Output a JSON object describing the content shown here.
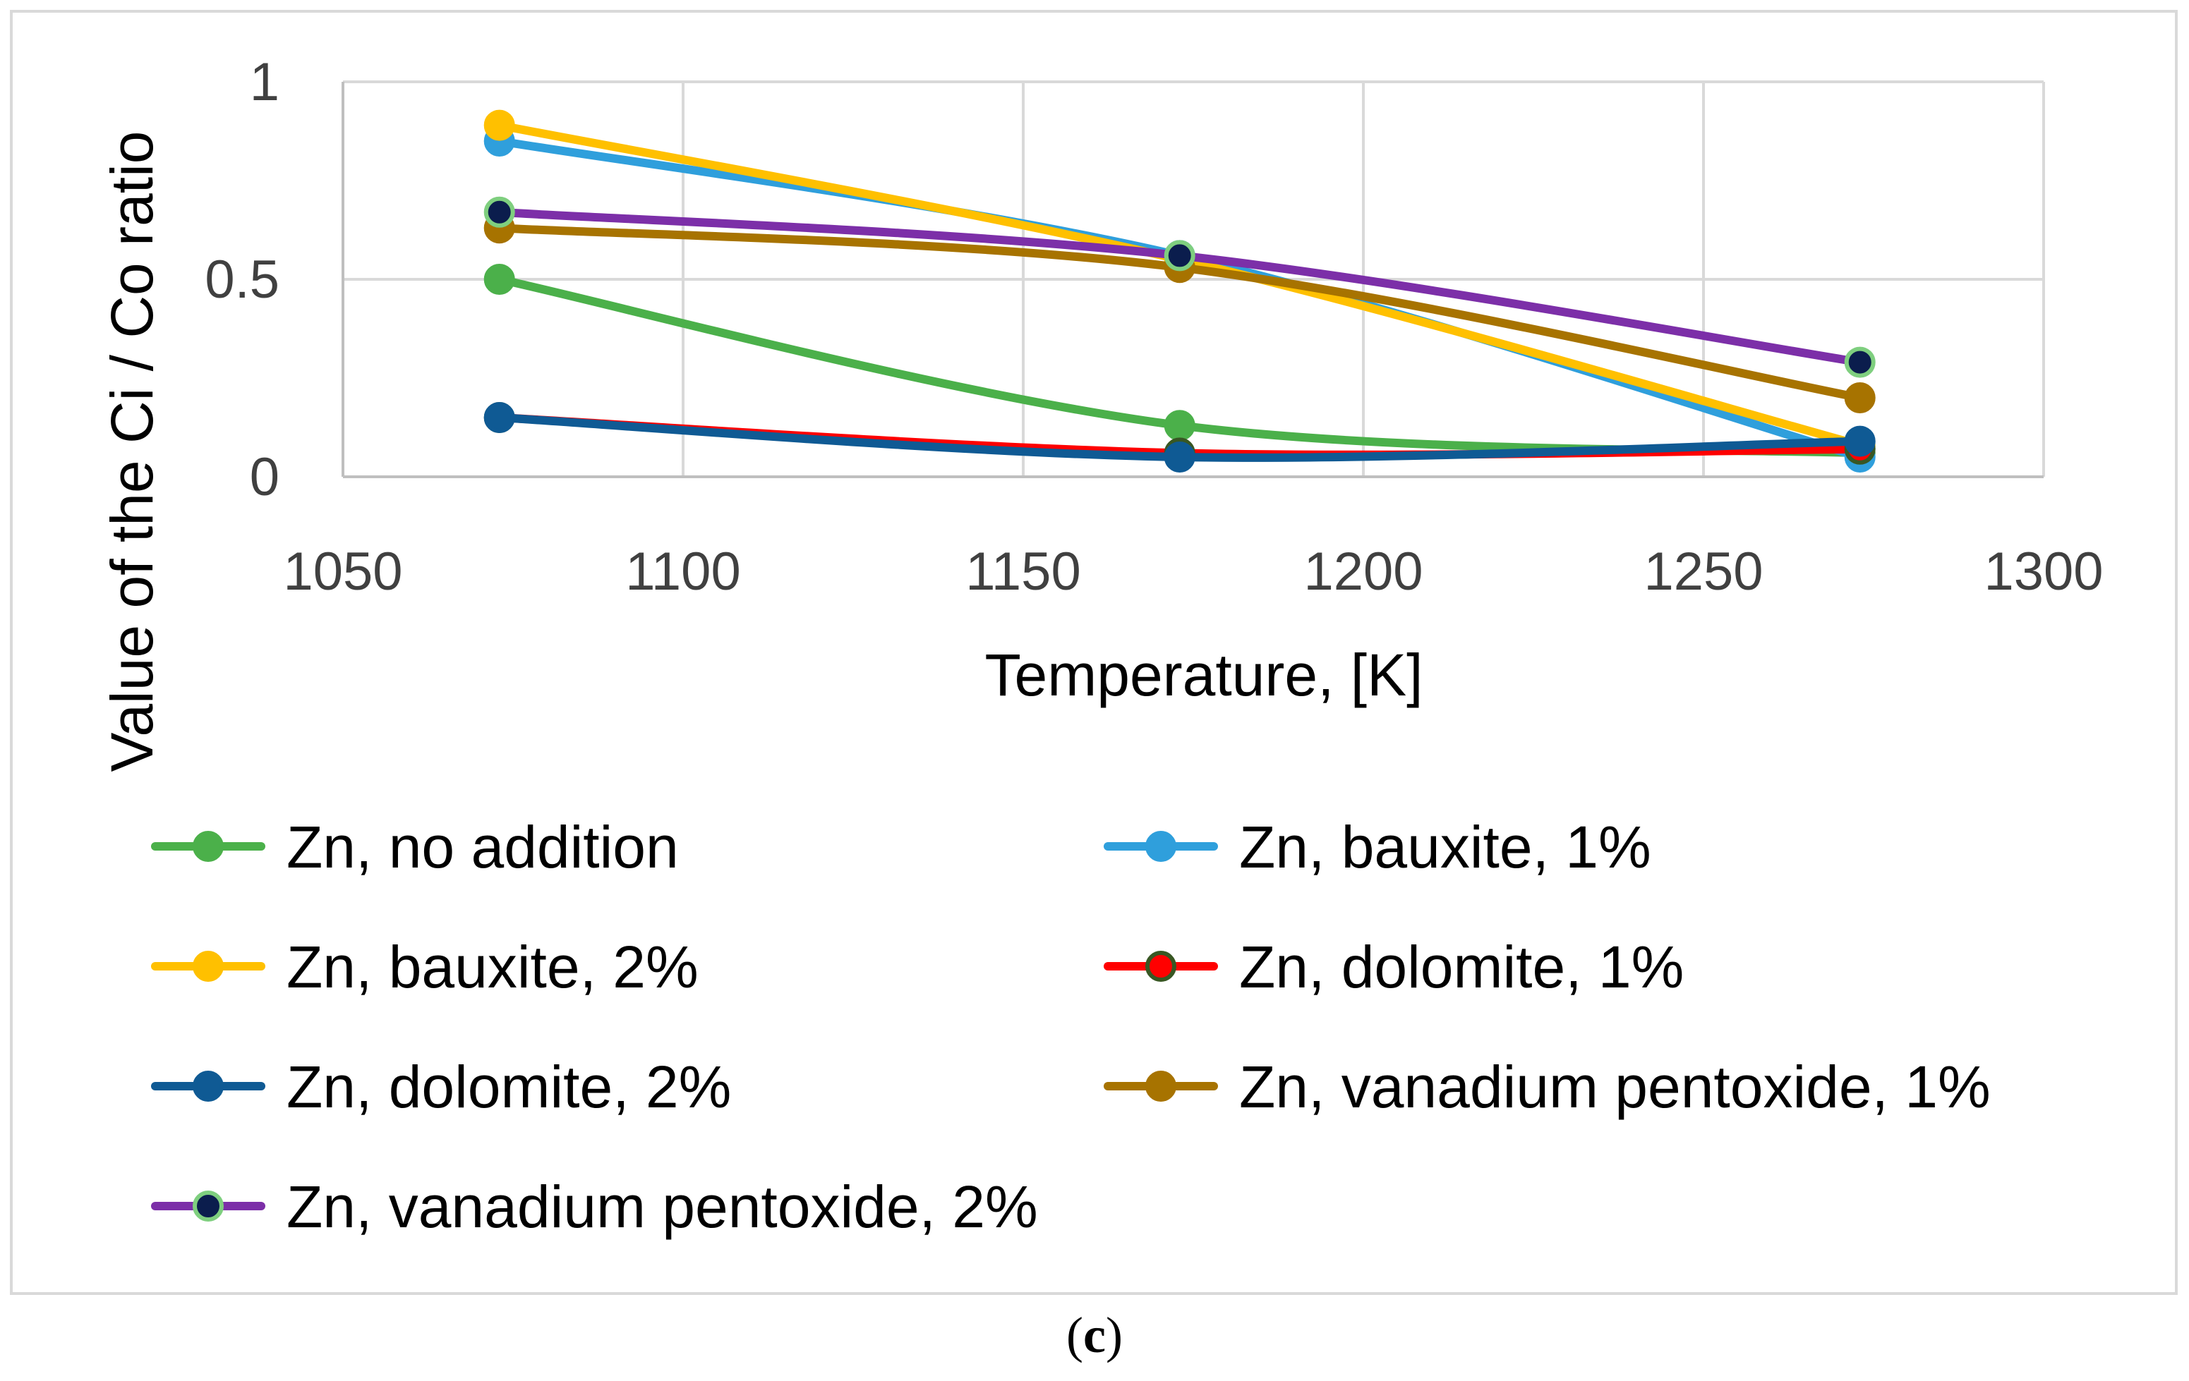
{
  "chart_data": {
    "type": "line",
    "title": "",
    "xlabel": "Temperature, [K]",
    "ylabel": "Value of the Ci / Co ratio",
    "xlim": [
      1050,
      1300
    ],
    "ylim": [
      0,
      1
    ],
    "xticks": [
      1050,
      1100,
      1150,
      1200,
      1250,
      1300
    ],
    "xtick_labels": [
      "1050",
      "1100",
      "1150",
      "1200",
      "1250",
      "1300"
    ],
    "yticks": [
      0,
      0.5,
      1
    ],
    "ytick_labels": [
      "0",
      "0.5",
      "1"
    ],
    "grid": true,
    "legend_position": "bottom",
    "x": [
      1073,
      1173,
      1273
    ],
    "series": [
      {
        "name": "Zn, no addition",
        "values": [
          0.5,
          0.13,
          0.06
        ],
        "color": "#4bb04a",
        "marker_fill": "#4bb04a",
        "marker_stroke": "#4bb04a"
      },
      {
        "name": "Zn, bauxite, 1%",
        "values": [
          0.85,
          0.56,
          0.05
        ],
        "color": "#2f9fdc",
        "marker_fill": "#2f9fdc",
        "marker_stroke": "#2f9fdc"
      },
      {
        "name": "Zn, bauxite, 2%",
        "values": [
          0.89,
          0.55,
          0.08
        ],
        "color": "#ffc000",
        "marker_fill": "#ffc000",
        "marker_stroke": "#ffc000"
      },
      {
        "name": "Zn, dolomite, 1%",
        "values": [
          0.15,
          0.06,
          0.07
        ],
        "color": "#ff0000",
        "marker_fill": "#ff0000",
        "marker_stroke": "#385723"
      },
      {
        "name": "Zn, dolomite, 2%",
        "values": [
          0.15,
          0.05,
          0.09
        ],
        "color": "#0f5a94",
        "marker_fill": "#0f5a94",
        "marker_stroke": "#0f5a94"
      },
      {
        "name": "Zn, vanadium pentoxide, 1%",
        "values": [
          0.63,
          0.53,
          0.2
        ],
        "color": "#a77300",
        "marker_fill": "#a77300",
        "marker_stroke": "#a77300"
      },
      {
        "name": "Zn, vanadium pentoxide, 2%",
        "values": [
          0.67,
          0.56,
          0.29
        ],
        "color": "#7c2fa8",
        "marker_fill": "#0b1d4d",
        "marker_stroke": "#7fcf7f"
      }
    ]
  },
  "caption": {
    "open": "(",
    "letter": "c",
    "close": ")"
  }
}
